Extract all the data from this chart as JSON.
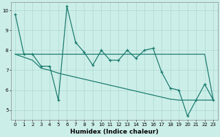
{
  "xlabel": "Humidex (Indice chaleur)",
  "background_color": "#cceee8",
  "line_color": "#1a7a6e",
  "grid_color": "#aad8d0",
  "x_values": [
    0,
    1,
    2,
    3,
    4,
    5,
    6,
    7,
    8,
    9,
    10,
    11,
    12,
    13,
    14,
    15,
    16,
    17,
    18,
    19,
    20,
    21,
    22,
    23
  ],
  "line1": [
    9.8,
    7.8,
    7.8,
    7.2,
    7.2,
    5.5,
    10.2,
    8.4,
    7.9,
    7.25,
    8.0,
    7.5,
    7.5,
    8.0,
    7.6,
    8.0,
    8.1,
    6.9,
    6.1,
    6.0,
    4.7,
    5.5,
    6.3,
    5.5
  ],
  "line2": [
    7.8,
    7.8,
    7.8,
    7.8,
    7.8,
    7.8,
    7.8,
    7.8,
    7.8,
    7.8,
    7.8,
    7.8,
    7.8,
    7.8,
    7.8,
    7.8,
    7.8,
    7.8,
    7.8,
    7.8,
    7.8,
    7.8,
    7.8,
    5.5
  ],
  "line3": [
    7.8,
    7.65,
    7.5,
    7.1,
    7.0,
    6.85,
    6.75,
    6.65,
    6.55,
    6.45,
    6.35,
    6.25,
    6.15,
    6.05,
    5.95,
    5.85,
    5.75,
    5.65,
    5.55,
    5.5,
    5.5,
    5.5,
    5.5,
    5.5
  ],
  "ylim": [
    4.5,
    10.4
  ],
  "yticks": [
    5,
    6,
    7,
    8,
    9,
    10
  ],
  "xticks": [
    0,
    1,
    2,
    3,
    4,
    5,
    6,
    7,
    8,
    9,
    10,
    11,
    12,
    13,
    14,
    15,
    16,
    17,
    18,
    19,
    20,
    21,
    22,
    23
  ],
  "tick_fontsize": 5.0,
  "xlabel_fontsize": 6.5,
  "linewidth": 0.9,
  "markersize": 3.5
}
